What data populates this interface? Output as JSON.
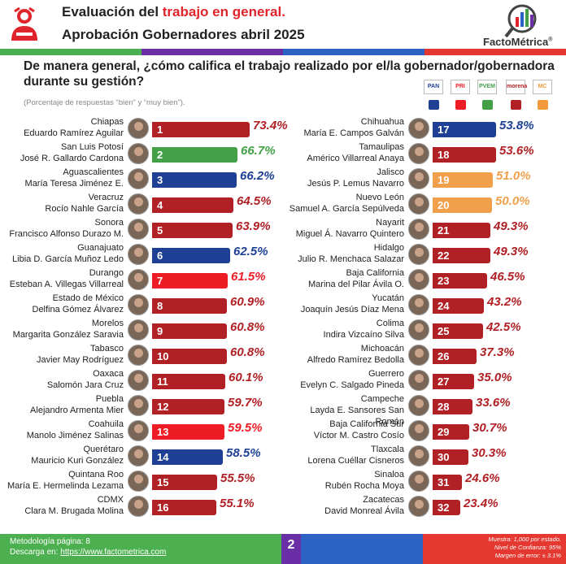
{
  "header": {
    "title_prefix": "Evaluación del ",
    "title_accent": "trabajo en general.",
    "subtitle": "Aprobación Gobernadores abril 2025",
    "brand": "FactoMétrica",
    "brand_mark": "®"
  },
  "question": "De manera general, ¿cómo califica el trabajo realizado por el/la gobernador/gobernadora durante su gestión?",
  "note": "(Porcentaje de respuestas “bien” y “muy bien”).",
  "party_legend": [
    {
      "label": "PAN",
      "color": "#1d3f94"
    },
    {
      "label": "PRI",
      "color": "#ee1c25"
    },
    {
      "label": "PVEM",
      "color": "#43a047"
    },
    {
      "label": "morena",
      "color": "#b02025"
    },
    {
      "label": "MC",
      "color": "#f39a3c"
    }
  ],
  "colors": {
    "morena": "#b02025",
    "pan": "#1d3f94",
    "pri": "#ee1c25",
    "pvem": "#43a047",
    "mc": "#f0a04b"
  },
  "chart_data": {
    "type": "bar",
    "value_format": "percent",
    "left_column": [
      {
        "rank": "1",
        "state": "Chiapas",
        "governor": "Eduardo Ramírez Aguilar",
        "value": 73.4,
        "label": "73.4%",
        "party": "morena"
      },
      {
        "rank": "2",
        "state": "San Luis Potosí",
        "governor": "José R. Gallardo Cardona",
        "value": 66.7,
        "label": "66.7%",
        "party": "pvem"
      },
      {
        "rank": "3",
        "state": "Aguascalientes",
        "governor": "María Teresa Jiménez E.",
        "value": 66.2,
        "label": "66.2%",
        "party": "pan"
      },
      {
        "rank": "4",
        "state": "Veracruz",
        "governor": "Rocío Nahle García",
        "value": 64.5,
        "label": "64.5%",
        "party": "morena"
      },
      {
        "rank": "5",
        "state": "Sonora",
        "governor": "Francisco Alfonso Durazo M.",
        "value": 63.9,
        "label": "63.9%",
        "party": "morena"
      },
      {
        "rank": "6",
        "state": "Guanajuato",
        "governor": "Libia D. García Muñoz Ledo",
        "value": 62.5,
        "label": "62.5%",
        "party": "pan"
      },
      {
        "rank": "7",
        "state": "Durango",
        "governor": "Esteban A. Villegas Villarreal",
        "value": 61.5,
        "label": "61.5%",
        "party": "pri"
      },
      {
        "rank": "8",
        "state": "Estado de México",
        "governor": "Delfina Gómez Álvarez",
        "value": 60.9,
        "label": "60.9%",
        "party": "morena"
      },
      {
        "rank": "9",
        "state": "Morelos",
        "governor": "Margarita González Saravia",
        "value": 60.8,
        "label": "60.8%",
        "party": "morena"
      },
      {
        "rank": "10",
        "state": "Tabasco",
        "governor": "Javier May Rodríguez",
        "value": 60.8,
        "label": "60.8%",
        "party": "morena"
      },
      {
        "rank": "11",
        "state": "Oaxaca",
        "governor": "Salomón Jara Cruz",
        "value": 60.1,
        "label": "60.1%",
        "party": "morena"
      },
      {
        "rank": "12",
        "state": "Puebla",
        "governor": "Alejandro Armenta Mier",
        "value": 59.7,
        "label": "59.7%",
        "party": "morena"
      },
      {
        "rank": "13",
        "state": "Coahuila",
        "governor": "Manolo Jiménez Salinas",
        "value": 59.5,
        "label": "59.5%",
        "party": "pri"
      },
      {
        "rank": "14",
        "state": "Querétaro",
        "governor": "Mauricio Kuri González",
        "value": 58.5,
        "label": "58.5%",
        "party": "pan"
      },
      {
        "rank": "15",
        "state": "Quintana Roo",
        "governor": "María E. Hermelinda Lezama",
        "value": 55.5,
        "label": "55.5%",
        "party": "morena"
      },
      {
        "rank": "16",
        "state": "CDMX",
        "governor": "Clara M. Brugada Molina",
        "value": 55.1,
        "label": "55.1%",
        "party": "morena"
      }
    ],
    "right_column": [
      {
        "rank": "17",
        "state": "Chihuahua",
        "governor": "María E. Campos Galván",
        "value": 53.8,
        "label": "53.8%",
        "party": "pan"
      },
      {
        "rank": "18",
        "state": "Tamaulipas",
        "governor": "Américo Villarreal Anaya",
        "value": 53.6,
        "label": "53.6%",
        "party": "morena"
      },
      {
        "rank": "19",
        "state": "Jalisco",
        "governor": "Jesús P. Lemus Navarro",
        "value": 51.0,
        "label": "51.0%",
        "party": "mc"
      },
      {
        "rank": "20",
        "state": "Nuevo León",
        "governor": "Samuel A. García Sepúlveda",
        "value": 50.0,
        "label": "50.0%",
        "party": "mc"
      },
      {
        "rank": "21",
        "state": "Nayarit",
        "governor": "Miguel Á. Navarro Quintero",
        "value": 49.3,
        "label": "49.3%",
        "party": "morena"
      },
      {
        "rank": "22",
        "state": "Hidalgo",
        "governor": "Julio R. Menchaca Salazar",
        "value": 49.3,
        "label": "49.3%",
        "party": "morena"
      },
      {
        "rank": "23",
        "state": "Baja California",
        "governor": "Marina del Pilar Ávila O.",
        "value": 46.5,
        "label": "46.5%",
        "party": "morena"
      },
      {
        "rank": "24",
        "state": "Yucatán",
        "governor": "Joaquín Jesús Díaz Mena",
        "value": 43.2,
        "label": "43.2%",
        "party": "morena"
      },
      {
        "rank": "25",
        "state": "Colima",
        "governor": "Indira Vizcaíno Silva",
        "value": 42.5,
        "label": "42.5%",
        "party": "morena"
      },
      {
        "rank": "26",
        "state": "Michoacán",
        "governor": "Alfredo Ramírez Bedolla",
        "value": 37.3,
        "label": "37.3%",
        "party": "morena"
      },
      {
        "rank": "27",
        "state": "Guerrero",
        "governor": "Evelyn C. Salgado Pineda",
        "value": 35.0,
        "label": "35.0%",
        "party": "morena"
      },
      {
        "rank": "28",
        "state": "Campeche",
        "governor": "Layda E. Sansores San Román",
        "value": 33.6,
        "label": "33.6%",
        "party": "morena"
      },
      {
        "rank": "29",
        "state": "Baja California Sur",
        "governor": "Víctor M. Castro Cosío",
        "value": 30.7,
        "label": "30.7%",
        "party": "morena"
      },
      {
        "rank": "30",
        "state": "Tlaxcala",
        "governor": "Lorena Cuéllar Cisneros",
        "value": 30.3,
        "label": "30.3%",
        "party": "morena"
      },
      {
        "rank": "31",
        "state": "Sinaloa",
        "governor": "Rubén Rocha Moya",
        "value": 24.6,
        "label": "24.6%",
        "party": "morena"
      },
      {
        "rank": "32",
        "state": "Zacatecas",
        "governor": "David Monreal Ávila",
        "value": 23.4,
        "label": "23.4%",
        "party": "morena"
      }
    ]
  },
  "footer": {
    "methodology": "Metodología página: 8",
    "download_prefix": "Descarga en: ",
    "download_link": "https://www.factometrica.com",
    "page": "2",
    "sample": "Muestra: 1,000 por estado.",
    "confidence": "Nivel de Confianza: 95%",
    "error": "Margen de error: ± 3.1%"
  }
}
